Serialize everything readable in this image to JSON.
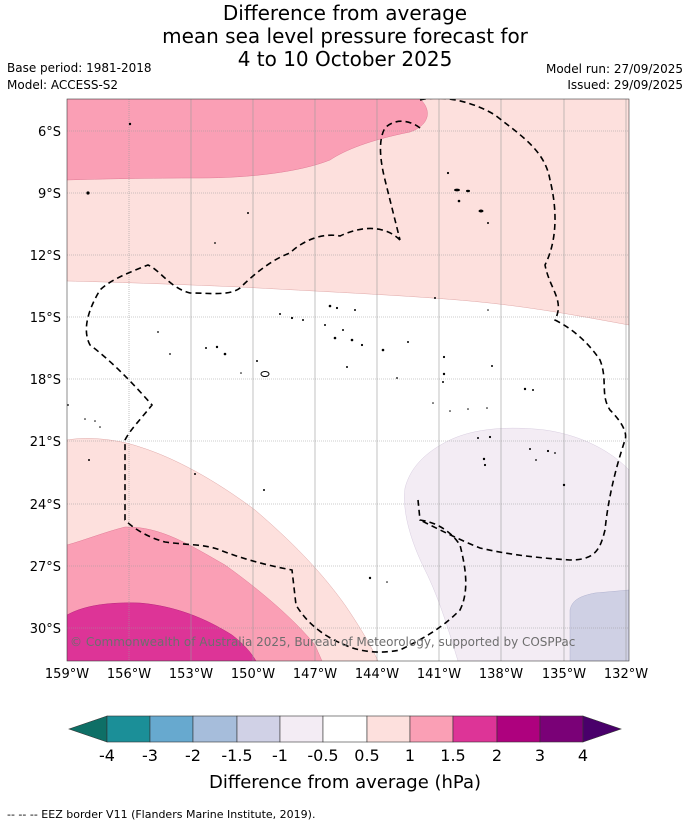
{
  "header": {
    "title_line1": "Difference from average",
    "title_line2": "mean sea level pressure forecast for",
    "title_line3": "4 to 10 October 2025",
    "base_period": "Base period: 1981-2018",
    "model": "Model: ACCESS-S2",
    "model_run": "Model run: 27/09/2025",
    "issued": "Issued: 29/09/2025"
  },
  "map": {
    "lat_labels": [
      "6°S",
      "9°S",
      "12°S",
      "15°S",
      "18°S",
      "21°S",
      "24°S",
      "27°S",
      "30°S"
    ],
    "lon_labels": [
      "159°W",
      "156°W",
      "153°W",
      "150°W",
      "147°W",
      "144°W",
      "141°W",
      "138°W",
      "135°W",
      "132°W"
    ],
    "copyright": "© Commonwealth of Australia 2025, Bureau of Meteorology, supported by COSPPac",
    "colors": {
      "pos_05_1": "#fde0dd",
      "pos_1_15": "#fa9fb5",
      "pos_15_2": "#dd3497",
      "neg_05_1": "#f3ecf4",
      "neg_1_15": "#cfd0e4",
      "eez": "#000000"
    }
  },
  "colorbar": {
    "labels": [
      "-4",
      "-3",
      "-2",
      "-1.5",
      "-1",
      "-0.5",
      "0.5",
      "1",
      "1.5",
      "2",
      "3",
      "4"
    ],
    "title": "Difference from average (hPa)",
    "colors": [
      "#0e6f66",
      "#1b8f98",
      "#67a9cf",
      "#a6bddb",
      "#d0d1e6",
      "#f3ecf4",
      "#ffffff",
      "#fde0dd",
      "#fa9fb5",
      "#dd3497",
      "#ae017e",
      "#7a0177",
      "#49006a"
    ]
  },
  "footer": {
    "legend": "--  --  -- EEZ border V11 (Flanders Marine Institute, 2019)."
  }
}
